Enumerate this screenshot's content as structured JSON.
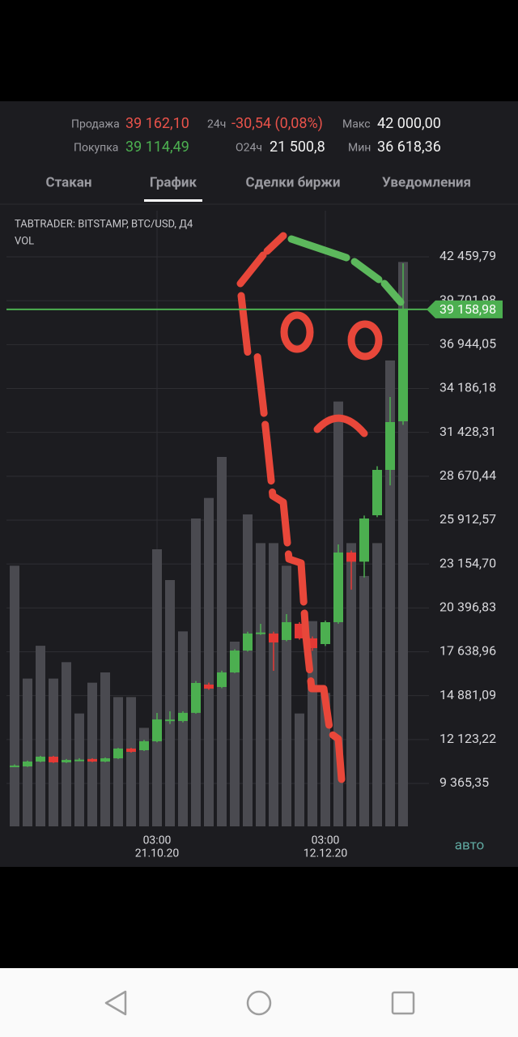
{
  "header": {
    "sell_label": "Продажа",
    "sell_value": "39 162,10",
    "change_label": "24ч",
    "change_value": "-30,54 (0,08%)",
    "max_label": "Макс",
    "max_value": "42 000,00",
    "buy_label": "Покупка",
    "buy_value": "39 114,49",
    "volume_label": "O24ч",
    "volume_value": "21 500,8",
    "min_label": "Мин",
    "min_value": "36 618,36"
  },
  "tabs": {
    "items": [
      "Стакан",
      "График",
      "Сделки биржи",
      "Уведомления"
    ],
    "active": 1
  },
  "chart_data": {
    "type": "candlestick",
    "title": "TABTRADER: BITSTAMP, BTC/USD, Д4",
    "subtitle": "VOL",
    "categories": [
      null,
      null,
      null,
      null,
      null,
      null,
      null,
      null,
      null,
      null,
      null,
      {
        "time": "03:00",
        "date": "21.10.20"
      },
      null,
      null,
      null,
      null,
      null,
      null,
      null,
      null,
      null,
      null,
      null,
      null,
      {
        "time": "03:00",
        "date": "12.12.20"
      },
      null,
      null,
      null,
      null,
      null,
      null
    ],
    "open": [
      10440,
      10435,
      10740,
      11046,
      10690,
      10842,
      10900,
      10740,
      10944,
      11555,
      11453,
      12013,
      13290,
      13286,
      13800,
      15577,
      15425,
      16341,
      17716,
      18785,
      18785,
      18378,
      19400,
      18480,
      18123,
      19498,
      23876,
      23300,
      26218,
      29069,
      32124
    ],
    "high": [
      10560,
      10800,
      11100,
      11100,
      10900,
      10950,
      10950,
      11000,
      11600,
      11600,
      12100,
      13795,
      13896,
      13900,
      15800,
      15700,
      16450,
      17800,
      18900,
      19396,
      18900,
      20007,
      19500,
      18600,
      19600,
      24385,
      24000,
      26200,
      29300,
      33651,
      42052
    ],
    "low": [
      10400,
      10400,
      10700,
      10650,
      10650,
      10800,
      10700,
      10700,
      10900,
      11300,
      11400,
      11950,
      13100,
      13200,
      13750,
      15250,
      15350,
      16300,
      17650,
      18700,
      16443,
      18300,
      18400,
      17700,
      18000,
      19400,
      21543,
      22307,
      26100,
      28095,
      31900
    ],
    "close": [
      10490,
      10740,
      11046,
      10690,
      10840,
      10860,
      10740,
      10944,
      11555,
      11351,
      12013,
      13387,
      13380,
      13800,
      15679,
      15323,
      16341,
      17716,
      18785,
      18850,
      18225,
      19498,
      18480,
      17869,
      19498,
      23876,
      23300,
      26014,
      29069,
      32073,
      39158.98
    ],
    "volume": [
      127,
      72,
      88,
      72,
      80,
      55,
      70,
      75,
      63,
      63,
      48,
      135,
      120,
      95,
      150,
      160,
      180,
      90,
      152,
      138,
      138,
      127,
      55,
      100,
      65,
      207,
      138,
      122,
      138,
      227,
      275
    ],
    "up_color": "#4caf50",
    "down_color": "#e53935",
    "volume_color": "#4a4a50",
    "ylim": [
      6667,
      45361
    ],
    "vlim": [
      0,
      300
    ],
    "yticks": [
      {
        "value": 9365.35,
        "label": "9 365,35"
      },
      {
        "value": 12123.22,
        "label": "12 123,22"
      },
      {
        "value": 14881.09,
        "label": "14 881,09"
      },
      {
        "value": 17638.96,
        "label": "17 638,96"
      },
      {
        "value": 20396.83,
        "label": "20 396,83"
      },
      {
        "value": 23154.7,
        "label": "23 154,70"
      },
      {
        "value": 25912.57,
        "label": "25 912,57"
      },
      {
        "value": 28670.44,
        "label": "28 670,44"
      },
      {
        "value": 31428.31,
        "label": "31 428,31"
      },
      {
        "value": 34186.18,
        "label": "34 186,18"
      },
      {
        "value": 36944.05,
        "label": "36 944,05"
      },
      {
        "value": 39701.98,
        "label": "39 701,98"
      },
      {
        "value": 42459.79,
        "label": "42 459,79"
      }
    ],
    "last_price": {
      "value": 39158.98,
      "label": "39 158,98"
    },
    "grid": true,
    "scale_mode": "авто"
  }
}
